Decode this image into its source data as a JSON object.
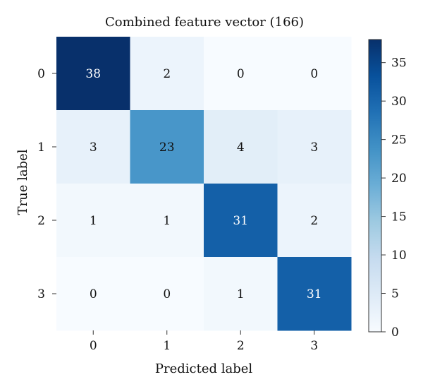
{
  "chart_data": {
    "type": "heatmap",
    "title": "Combined feature vector (166)",
    "xlabel": "Predicted label",
    "ylabel": "True label",
    "x_categories": [
      "0",
      "1",
      "2",
      "3"
    ],
    "y_categories": [
      "0",
      "1",
      "2",
      "3"
    ],
    "matrix": [
      [
        38,
        2,
        0,
        0
      ],
      [
        3,
        23,
        4,
        3
      ],
      [
        1,
        1,
        31,
        2
      ],
      [
        0,
        0,
        1,
        31
      ]
    ],
    "colormap": "Blues",
    "color_low": "#f7fbff",
    "color_high": "#08306b",
    "colorbar": {
      "range": [
        0,
        38
      ],
      "ticks": [
        0,
        5,
        10,
        15,
        20,
        25,
        30,
        35
      ]
    }
  }
}
